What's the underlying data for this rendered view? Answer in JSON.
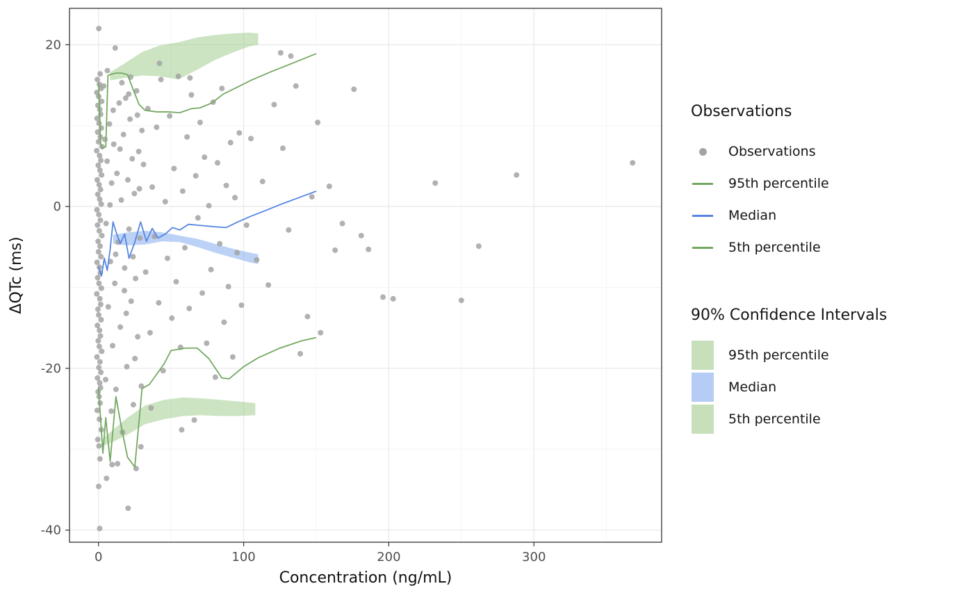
{
  "legend": {
    "groups": [
      {
        "title": "Observations",
        "items": [
          {
            "label": "Observations",
            "key": "point",
            "color": "#a3a3a3"
          },
          {
            "label": "95th percentile",
            "key": "line",
            "color": "#74a862"
          },
          {
            "label": "Median",
            "key": "line",
            "color": "#5585e0"
          },
          {
            "label": "5th percentile",
            "key": "line",
            "color": "#74a862"
          }
        ]
      },
      {
        "title": "90% Confidence Intervals",
        "items": [
          {
            "label": "95th percentile",
            "key": "fill",
            "color": "#c8e0ba"
          },
          {
            "label": "Median",
            "key": "fill",
            "color": "#b5cdf4"
          },
          {
            "label": "5th percentile",
            "key": "fill",
            "color": "#c8e0ba"
          }
        ]
      }
    ]
  },
  "chart_data": {
    "type": "scatter",
    "title": "",
    "xlabel": "Concentration (ng/mL)",
    "ylabel": "ΔQTc (ms)",
    "xlim": [
      -20,
      388
    ],
    "ylim": [
      -41.5,
      24.5
    ],
    "xticks": [
      0,
      100,
      200,
      300
    ],
    "yticks": [
      -40,
      -20,
      0,
      20
    ],
    "xticks_minor": [
      50,
      150,
      250,
      350
    ],
    "yticks_minor": [
      -30,
      -10,
      10
    ],
    "grid": true,
    "legend_position": "right",
    "colors": {
      "observation": "#a3a3a3",
      "percentile_line": "#74a862",
      "median_line": "#5585e0",
      "percentile_fill": "#a3cd90",
      "median_fill": "#8db2ef"
    },
    "ribbons": [
      {
        "name": "95th percentile CI",
        "color_key": "percentile_fill",
        "opacity": 0.55,
        "x": [
          8,
          18,
          30,
          42,
          55,
          68,
          80,
          92,
          104,
          110
        ],
        "ymin": [
          15.6,
          15.9,
          16.2,
          16.1,
          15.7,
          16.9,
          18.1,
          19.0,
          19.8,
          20.0
        ],
        "ymax": [
          16.6,
          17.7,
          19.1,
          19.9,
          20.3,
          20.9,
          21.2,
          21.4,
          21.5,
          21.4
        ]
      },
      {
        "name": "Median CI",
        "color_key": "median_fill",
        "opacity": 0.6,
        "x": [
          10,
          20,
          32,
          44,
          56,
          68,
          80,
          92,
          104,
          110
        ],
        "ymin": [
          -4.6,
          -4.8,
          -4.7,
          -4.3,
          -4.4,
          -5.0,
          -5.7,
          -6.3,
          -6.9,
          -7.1
        ],
        "ymax": [
          -3.5,
          -3.2,
          -3.0,
          -3.2,
          -3.6,
          -4.0,
          -4.6,
          -5.2,
          -5.7,
          -5.9
        ]
      },
      {
        "name": "5th percentile CI",
        "color_key": "percentile_fill",
        "opacity": 0.55,
        "x": [
          3,
          10,
          20,
          32,
          45,
          58,
          70,
          84,
          96,
          108
        ],
        "ymin": [
          -29.6,
          -29.1,
          -28.2,
          -26.9,
          -26.3,
          -25.9,
          -25.8,
          -25.9,
          -25.9,
          -25.8
        ],
        "ymax": [
          -28.7,
          -27.6,
          -26.1,
          -24.6,
          -23.9,
          -23.6,
          -23.7,
          -23.9,
          -24.1,
          -24.3
        ]
      }
    ],
    "lines": [
      {
        "name": "95th percentile",
        "color_key": "percentile_line",
        "x": [
          0,
          1.5,
          3,
          5,
          6.5,
          8,
          12,
          16,
          20,
          24,
          28,
          32,
          40,
          48,
          56,
          64,
          70,
          78,
          86,
          95,
          105,
          118,
          132,
          150
        ],
        "y": [
          15.3,
          7.6,
          7.2,
          7.4,
          16.2,
          16.3,
          16.5,
          16.5,
          16.3,
          14.4,
          12.6,
          11.9,
          11.7,
          11.7,
          11.6,
          12.1,
          12.2,
          12.8,
          13.9,
          14.7,
          15.6,
          16.6,
          17.6,
          18.9
        ]
      },
      {
        "name": "Median",
        "color_key": "median_line",
        "x": [
          0,
          2,
          4,
          6,
          8,
          10,
          12,
          15,
          18,
          21,
          25,
          29,
          33,
          37,
          41,
          46,
          51,
          56,
          62,
          68,
          74,
          80,
          88,
          96,
          105,
          115,
          126,
          138,
          150
        ],
        "y": [
          -7.4,
          -8.6,
          -6.4,
          -7.9,
          -5.3,
          -1.9,
          -3.1,
          -4.6,
          -3.4,
          -6.4,
          -4.4,
          -1.9,
          -4.3,
          -2.7,
          -3.9,
          -3.4,
          -2.6,
          -2.9,
          -2.2,
          -2.3,
          -2.4,
          -2.5,
          -2.6,
          -1.9,
          -1.2,
          -0.5,
          0.3,
          1.1,
          1.9
        ]
      },
      {
        "name": "5th percentile",
        "color_key": "percentile_line",
        "x": [
          0,
          3,
          5,
          8,
          12,
          16,
          20,
          25,
          30,
          35,
          45,
          50,
          60,
          68,
          76,
          85,
          90,
          100,
          110,
          125,
          140,
          150
        ],
        "y": [
          -22.4,
          -30.5,
          -26.1,
          -31.5,
          -23.5,
          -27.5,
          -31.0,
          -32.2,
          -22.5,
          -22.0,
          -19.5,
          -17.8,
          -17.5,
          -17.5,
          -18.8,
          -21.2,
          -21.3,
          -19.8,
          -18.7,
          -17.5,
          -16.6,
          -16.2
        ]
      }
    ],
    "observations": [
      [
        0.2,
        22
      ],
      [
        1.1,
        16.4
      ],
      [
        -0.8,
        15.7
      ],
      [
        0.6,
        15.1
      ],
      [
        1.8,
        14.6
      ],
      [
        -1.2,
        14.1
      ],
      [
        0.1,
        13.6
      ],
      [
        2.2,
        13
      ],
      [
        -0.4,
        12.5
      ],
      [
        0.9,
        12
      ],
      [
        1.5,
        11.4
      ],
      [
        -1,
        10.9
      ],
      [
        0.3,
        10.3
      ],
      [
        2,
        9.7
      ],
      [
        -0.6,
        9.2
      ],
      [
        1.2,
        8.6
      ],
      [
        0,
        8
      ],
      [
        2.4,
        7.4
      ],
      [
        -1.3,
        6.9
      ],
      [
        0.7,
        6.3
      ],
      [
        1.6,
        5.7
      ],
      [
        -0.2,
        5.1
      ],
      [
        1,
        4.5
      ],
      [
        2.1,
        3.9
      ],
      [
        -0.9,
        3.3
      ],
      [
        0.4,
        2.7
      ],
      [
        1.4,
        2.1
      ],
      [
        -0.5,
        1.5
      ],
      [
        0.8,
        0.9
      ],
      [
        1.9,
        0.3
      ],
      [
        -1.1,
        -0.4
      ],
      [
        0.2,
        -1
      ],
      [
        1.3,
        -1.7
      ],
      [
        -0.7,
        -2.3
      ],
      [
        0.5,
        -3
      ],
      [
        2.3,
        -3.6
      ],
      [
        -0.3,
        -4.3
      ],
      [
        1.1,
        -4.9
      ],
      [
        0,
        -5.6
      ],
      [
        1.7,
        -6.2
      ],
      [
        -1,
        -6.9
      ],
      [
        0.6,
        -7.5
      ],
      [
        1.2,
        -8.2
      ],
      [
        -0.6,
        -8.8
      ],
      [
        0.3,
        -9.5
      ],
      [
        2,
        -10.1
      ],
      [
        -1.2,
        -10.8
      ],
      [
        0.9,
        -11.4
      ],
      [
        1.5,
        -12.1
      ],
      [
        -0.4,
        -12.7
      ],
      [
        0.1,
        -13.4
      ],
      [
        1.8,
        -14
      ],
      [
        -0.8,
        -14.7
      ],
      [
        0.7,
        -15.3
      ],
      [
        1.3,
        -16
      ],
      [
        -0.2,
        -16.6
      ],
      [
        0.5,
        -17.3
      ],
      [
        2.2,
        -17.9
      ],
      [
        -1.1,
        -18.6
      ],
      [
        1,
        -19.2
      ],
      [
        0.2,
        -19.9
      ],
      [
        1.6,
        -20.5
      ],
      [
        -0.7,
        -21.2
      ],
      [
        0.8,
        -21.8
      ],
      [
        1.4,
        -22.4
      ],
      [
        -0.3,
        -22.9
      ],
      [
        0.4,
        -23.5
      ],
      [
        1.1,
        -24.3
      ],
      [
        -0.9,
        -25.2
      ],
      [
        0.6,
        -26.3
      ],
      [
        1.9,
        -27.6
      ],
      [
        -0.5,
        -28.8
      ],
      [
        0.3,
        -29.6
      ],
      [
        1,
        -31.2
      ],
      [
        0.1,
        -34.6
      ],
      [
        0.8,
        -39.8
      ],
      [
        3.6,
        14.9
      ],
      [
        4.4,
        8.3
      ],
      [
        5.2,
        -2.1
      ],
      [
        5.9,
        5.6
      ],
      [
        6.7,
        -12.4
      ],
      [
        7.5,
        10.2
      ],
      [
        8.2,
        -6.8
      ],
      [
        9,
        2.9
      ],
      [
        9.7,
        -17.2
      ],
      [
        10.5,
        7.7
      ],
      [
        11.2,
        -9.5
      ],
      [
        11.5,
        19.6
      ],
      [
        12,
        -22.6
      ],
      [
        12.7,
        4.1
      ],
      [
        13.5,
        -4.4
      ],
      [
        14.2,
        12.8
      ],
      [
        15,
        -14.9
      ],
      [
        15.7,
        0.8
      ],
      [
        16.5,
        -27.9
      ],
      [
        17.2,
        8.9
      ],
      [
        18,
        -7.6
      ],
      [
        18.7,
        13.4
      ],
      [
        19.5,
        -19.8
      ],
      [
        20.2,
        3.3
      ],
      [
        20.4,
        -37.3
      ],
      [
        21,
        -2.8
      ],
      [
        21.7,
        10.8
      ],
      [
        22.5,
        -11.7
      ],
      [
        23.2,
        5.9
      ],
      [
        24,
        -24.5
      ],
      [
        24.7,
        1.6
      ],
      [
        25.5,
        -8.9
      ],
      [
        26.2,
        14.3
      ],
      [
        27,
        -16.1
      ],
      [
        27.7,
        6.8
      ],
      [
        28.5,
        -3.9
      ],
      [
        29.2,
        -29.7
      ],
      [
        29.9,
        9.4
      ],
      [
        4.9,
        -21.4
      ],
      [
        6.1,
        16.8
      ],
      [
        8.8,
        -25.3
      ],
      [
        9.3,
        -31.9
      ],
      [
        10.1,
        11.9
      ],
      [
        13.1,
        -31.8
      ],
      [
        16.1,
        15.3
      ],
      [
        19.1,
        -13.2
      ],
      [
        22.1,
        16
      ],
      [
        25.1,
        -18.8
      ],
      [
        28.1,
        2.2
      ],
      [
        5.5,
        -33.6
      ],
      [
        7.9,
        0.2
      ],
      [
        11.8,
        -5.9
      ],
      [
        14.8,
        7.1
      ],
      [
        17.8,
        -10.4
      ],
      [
        20.8,
        13.9
      ],
      [
        23.8,
        -6.2
      ],
      [
        26.8,
        11.3
      ],
      [
        29.5,
        -22.2
      ],
      [
        25.9,
        -32.4
      ],
      [
        31,
        5.2
      ],
      [
        32.5,
        -8.1
      ],
      [
        34,
        12.1
      ],
      [
        35.5,
        -15.6
      ],
      [
        36.2,
        -24.9
      ],
      [
        37,
        2.4
      ],
      [
        38.5,
        -3.7
      ],
      [
        40,
        9.8
      ],
      [
        41.5,
        -11.9
      ],
      [
        42,
        17.7
      ],
      [
        43,
        15.7
      ],
      [
        44.5,
        -20.3
      ],
      [
        46,
        0.6
      ],
      [
        47.5,
        -6.4
      ],
      [
        49,
        11.2
      ],
      [
        50.5,
        -13.8
      ],
      [
        52,
        4.7
      ],
      [
        53.5,
        -9.3
      ],
      [
        55,
        16.1
      ],
      [
        56.5,
        -17.4
      ],
      [
        57.3,
        -27.6
      ],
      [
        58,
        1.9
      ],
      [
        59.5,
        -5.1
      ],
      [
        61,
        8.6
      ],
      [
        62.5,
        -12.6
      ],
      [
        63,
        15.9
      ],
      [
        64,
        13.8
      ],
      [
        67,
        3.8
      ],
      [
        68.5,
        -1.4
      ],
      [
        70,
        10.4
      ],
      [
        71.5,
        -10.7
      ],
      [
        73,
        6.1
      ],
      [
        74.5,
        -16.9
      ],
      [
        76,
        0.1
      ],
      [
        77.5,
        -7.8
      ],
      [
        79,
        12.9
      ],
      [
        80.5,
        -21.1
      ],
      [
        82,
        5.4
      ],
      [
        83.5,
        -4.6
      ],
      [
        85,
        14.6
      ],
      [
        86.5,
        -14.3
      ],
      [
        88,
        2.6
      ],
      [
        89.5,
        -9.9
      ],
      [
        91,
        7.9
      ],
      [
        92.5,
        -18.6
      ],
      [
        94,
        1.1
      ],
      [
        95.5,
        -5.7
      ],
      [
        97,
        9.1
      ],
      [
        98.5,
        -12.2
      ],
      [
        66,
        -26.4
      ],
      [
        102,
        -2.3
      ],
      [
        105,
        8.4
      ],
      [
        109,
        -6.6
      ],
      [
        113,
        3.1
      ],
      [
        117,
        -9.7
      ],
      [
        121,
        12.6
      ],
      [
        125.5,
        19
      ],
      [
        132.5,
        18.6
      ],
      [
        127,
        7.2
      ],
      [
        131,
        -2.9
      ],
      [
        136,
        14.9
      ],
      [
        139,
        -18.2
      ],
      [
        144,
        -13.6
      ],
      [
        147,
        1.2
      ],
      [
        151,
        10.4
      ],
      [
        153,
        -15.6
      ],
      [
        159,
        2.5
      ],
      [
        163,
        -5.4
      ],
      [
        168,
        -2.1
      ],
      [
        176,
        14.5
      ],
      [
        181,
        -3.6
      ],
      [
        186,
        -5.3
      ],
      [
        196,
        -11.2
      ],
      [
        203,
        -11.4
      ],
      [
        232,
        2.9
      ],
      [
        250,
        -11.6
      ],
      [
        262,
        -4.9
      ],
      [
        288,
        3.9
      ],
      [
        368,
        5.4
      ]
    ]
  }
}
